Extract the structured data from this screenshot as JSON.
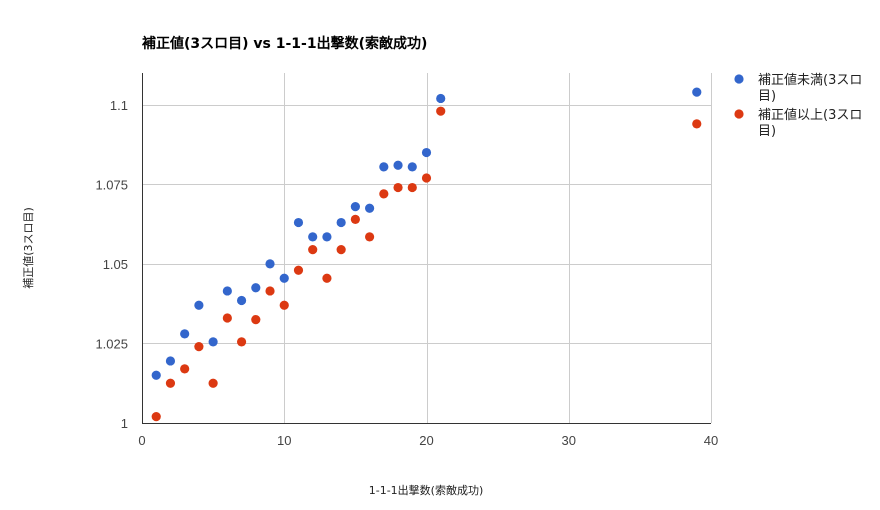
{
  "chart_data": {
    "type": "scatter",
    "title": "補正値(3スロ目) vs 1-1-1出撃数(索敵成功)",
    "xlabel": "1-1-1出撃数(索敵成功)",
    "ylabel": "補正値(3スロ目)",
    "xlim": [
      0,
      40
    ],
    "ylim": [
      1,
      1.11
    ],
    "x_ticks": [
      0,
      10,
      20,
      30,
      40
    ],
    "x_tick_labels": [
      "0",
      "10",
      "20",
      "30",
      "40"
    ],
    "y_ticks": [
      1,
      1.025,
      1.05,
      1.075,
      1.1
    ],
    "y_tick_labels": [
      "1",
      "1.025",
      "1.05",
      "1.075",
      "1.1"
    ],
    "grid": true,
    "legend_position": "right",
    "series": [
      {
        "name": "補正値未満(3スロ目)",
        "legend_lines": [
          "補正値未満(3スロ",
          "目)"
        ],
        "color": "#3366cc",
        "points": [
          [
            1,
            1.015
          ],
          [
            2,
            1.0195
          ],
          [
            3,
            1.028
          ],
          [
            4,
            1.037
          ],
          [
            5,
            1.0255
          ],
          [
            6,
            1.0415
          ],
          [
            7,
            1.0385
          ],
          [
            8,
            1.0425
          ],
          [
            9,
            1.05
          ],
          [
            10,
            1.0455
          ],
          [
            11,
            1.063
          ],
          [
            12,
            1.0585
          ],
          [
            13,
            1.0585
          ],
          [
            14,
            1.063
          ],
          [
            15,
            1.068
          ],
          [
            16,
            1.0675
          ],
          [
            17,
            1.0805
          ],
          [
            18,
            1.081
          ],
          [
            19,
            1.0805
          ],
          [
            20,
            1.085
          ],
          [
            21,
            1.102
          ],
          [
            39,
            1.104
          ]
        ]
      },
      {
        "name": "補正値以上(3スロ目)",
        "legend_lines": [
          "補正値以上(3スロ",
          "目)"
        ],
        "color": "#dc3912",
        "points": [
          [
            1,
            1.002
          ],
          [
            2,
            1.0125
          ],
          [
            3,
            1.017
          ],
          [
            4,
            1.024
          ],
          [
            5,
            1.0125
          ],
          [
            6,
            1.033
          ],
          [
            7,
            1.0255
          ],
          [
            8,
            1.0325
          ],
          [
            9,
            1.0415
          ],
          [
            10,
            1.037
          ],
          [
            11,
            1.048
          ],
          [
            12,
            1.0545
          ],
          [
            13,
            1.0455
          ],
          [
            14,
            1.0545
          ],
          [
            15,
            1.064
          ],
          [
            16,
            1.0585
          ],
          [
            17,
            1.072
          ],
          [
            18,
            1.074
          ],
          [
            19,
            1.074
          ],
          [
            20,
            1.077
          ],
          [
            21,
            1.098
          ],
          [
            39,
            1.094
          ]
        ]
      }
    ]
  }
}
